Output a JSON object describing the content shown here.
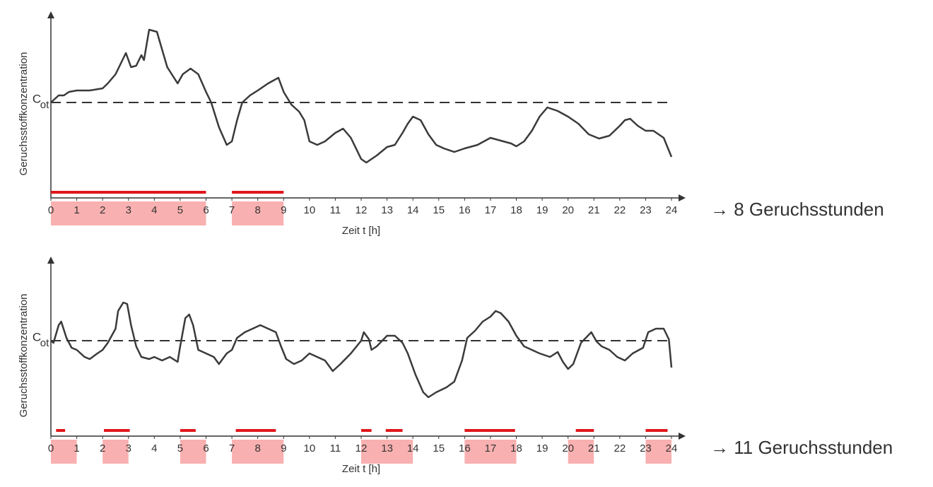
{
  "chart_data": [
    {
      "type": "line",
      "xlabel": "Zeit t [h]",
      "ylabel": "Geruchsstoffkonzentration",
      "threshold_label": "C",
      "threshold_label_sub": "ot",
      "threshold": 135,
      "xlim": [
        0,
        24
      ],
      "ylim": [
        0,
        262
      ],
      "xticks": [
        0,
        1,
        2,
        3,
        4,
        5,
        6,
        7,
        8,
        9,
        10,
        11,
        12,
        13,
        14,
        15,
        16,
        17,
        18,
        19,
        20,
        21,
        22,
        23,
        24
      ],
      "x": [
        0,
        0.3,
        0.5,
        0.7,
        1,
        1.5,
        2,
        2.2,
        2.5,
        2.7,
        2.9,
        3.1,
        3.3,
        3.5,
        3.6,
        3.8,
        4.1,
        4.3,
        4.5,
        4.9,
        5.1,
        5.4,
        5.7,
        6,
        6.2,
        6.5,
        6.8,
        7.0,
        7.2,
        7.4,
        7.7,
        8,
        8.4,
        8.7,
        8.8,
        9,
        9.3,
        9.6,
        9.8,
        10,
        10.3,
        10.6,
        11,
        11.3,
        11.6,
        12,
        12.2,
        12.6,
        13,
        13.3,
        13.6,
        13.8,
        14,
        14.3,
        14.6,
        14.9,
        15.2,
        15.6,
        16,
        16.5,
        17,
        17.5,
        17.8,
        18,
        18.3,
        18.6,
        18.9,
        19.2,
        19.6,
        20,
        20.4,
        20.8,
        21.2,
        21.6,
        22,
        22.2,
        22.4,
        22.7,
        23,
        23.3,
        23.7,
        24
      ],
      "values": [
        135,
        145,
        145,
        150,
        152,
        152,
        155,
        162,
        175,
        190,
        205,
        185,
        187,
        202,
        195,
        238,
        235,
        210,
        185,
        162,
        175,
        183,
        175,
        150,
        135,
        100,
        75,
        80,
        110,
        135,
        145,
        152,
        162,
        168,
        170,
        150,
        132,
        122,
        110,
        80,
        75,
        80,
        92,
        98,
        85,
        55,
        50,
        60,
        72,
        75,
        92,
        105,
        115,
        110,
        90,
        75,
        70,
        65,
        70,
        75,
        85,
        80,
        77,
        73,
        80,
        95,
        115,
        128,
        123,
        115,
        105,
        90,
        84,
        88,
        102,
        110,
        112,
        102,
        95,
        95,
        85,
        58
      ],
      "color": "#3a3a3a",
      "exceedances": [
        [
          0,
          6
        ],
        [
          7,
          9
        ]
      ],
      "exceedance_color": "#e0161b",
      "odour_hours": [
        [
          0,
          6
        ],
        [
          7,
          9
        ]
      ],
      "odour_hour_color": "#f9b0b0",
      "result": "→ 8 Geruchsstunden"
    },
    {
      "type": "line",
      "xlabel": "Zeit t [h]",
      "ylabel": "Geruchsstoffkonzentration",
      "threshold_label": "C",
      "threshold_label_sub": "ot",
      "threshold": 135,
      "xlim": [
        0,
        24
      ],
      "ylim": [
        0,
        252
      ],
      "xticks": [
        0,
        1,
        2,
        3,
        4,
        5,
        6,
        7,
        8,
        9,
        10,
        11,
        12,
        13,
        14,
        15,
        16,
        17,
        18,
        19,
        20,
        21,
        22,
        23,
        24
      ],
      "x": [
        0,
        0.1,
        0.3,
        0.4,
        0.6,
        0.8,
        1,
        1.3,
        1.5,
        1.8,
        2,
        2.2,
        2.5,
        2.6,
        2.8,
        2.95,
        3.1,
        3.3,
        3.5,
        3.8,
        4,
        4.3,
        4.6,
        4.9,
        5,
        5.2,
        5.35,
        5.5,
        5.7,
        6,
        6.3,
        6.5,
        6.8,
        7,
        7.2,
        7.5,
        7.8,
        8.1,
        8.4,
        8.7,
        8.9,
        9.1,
        9.4,
        9.7,
        10,
        10.3,
        10.6,
        10.9,
        11.2,
        11.6,
        12,
        12.1,
        12.3,
        12.4,
        12.6,
        13,
        13.3,
        13.6,
        13.8,
        14.1,
        14.4,
        14.6,
        14.9,
        15.3,
        15.6,
        15.9,
        16.1,
        16.4,
        16.7,
        17,
        17.2,
        17.4,
        17.7,
        18,
        18.3,
        18.6,
        18.9,
        19.3,
        19.6,
        19.8,
        20,
        20.2,
        20.5,
        20.9,
        21.1,
        21.3,
        21.6,
        21.9,
        22.2,
        22.5,
        22.9,
        23.1,
        23.4,
        23.7,
        23.9,
        24
      ],
      "values": [
        135,
        132,
        157,
        162,
        139,
        125,
        122,
        112,
        109,
        117,
        122,
        132,
        152,
        177,
        189,
        187,
        157,
        127,
        112,
        109,
        112,
        107,
        112,
        105,
        127,
        167,
        172,
        157,
        122,
        117,
        112,
        102,
        117,
        122,
        139,
        147,
        152,
        157,
        152,
        147,
        127,
        109,
        102,
        107,
        117,
        112,
        107,
        92,
        102,
        117,
        135,
        147,
        137,
        122,
        127,
        142,
        142,
        132,
        117,
        87,
        62,
        55,
        62,
        69,
        77,
        107,
        139,
        149,
        162,
        169,
        177,
        174,
        162,
        142,
        127,
        122,
        117,
        112,
        119,
        105,
        95,
        102,
        132,
        147,
        134,
        127,
        122,
        112,
        107,
        117,
        125,
        147,
        152,
        152,
        137,
        97
      ],
      "color": "#3a3a3a",
      "exceedances": [
        [
          0.2,
          0.55
        ],
        [
          2.05,
          3.05
        ],
        [
          5.0,
          5.6
        ],
        [
          7.15,
          8.7
        ],
        [
          12.0,
          12.4
        ],
        [
          12.95,
          13.6
        ],
        [
          16.0,
          17.95
        ],
        [
          20.3,
          21.0
        ],
        [
          23.0,
          23.85
        ]
      ],
      "exceedance_color": "#e0161b",
      "odour_hours": [
        [
          0,
          1
        ],
        [
          2,
          3
        ],
        [
          5,
          6
        ],
        [
          7,
          9
        ],
        [
          12,
          14
        ],
        [
          16,
          18
        ],
        [
          20,
          21
        ],
        [
          23,
          24
        ]
      ],
      "odour_hour_color": "#f9b0b0",
      "result": "→ 11 Geruchsstunden"
    }
  ]
}
